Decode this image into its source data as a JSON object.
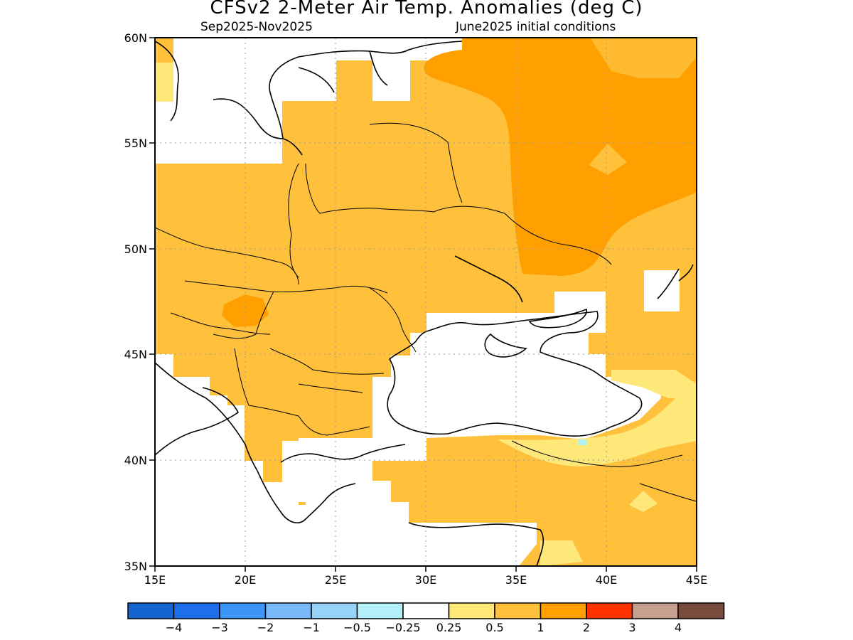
{
  "header": {
    "title": "CFSv2 2-Meter Air Temp. Anomalies (deg C)",
    "period": "Sep2025-Nov2025",
    "init": "June2025 initial conditions"
  },
  "map": {
    "lat_labels": [
      "60N",
      "55N",
      "50N",
      "45N",
      "40N",
      "35N"
    ],
    "lon_labels": [
      "15E",
      "20E",
      "25E",
      "30E",
      "35E",
      "40E",
      "45E"
    ],
    "extent": {
      "lon": [
        15,
        45
      ],
      "lat": [
        35,
        60
      ]
    },
    "grid": "dotted",
    "colors": {
      "c025": "#ffe87a",
      "c05": "#ffc03c",
      "c1": "#ffa000",
      "neutral": "#ffffff",
      "cool": "#b0f0f8",
      "coast": "#000000"
    }
  },
  "legend": {
    "swatches": [
      "#1464d2",
      "#1e6eeb",
      "#3c96f5",
      "#78b9fa",
      "#96d2fa",
      "#b4f0fa",
      "#ffffff",
      "#ffe878",
      "#ffc03c",
      "#ffa000",
      "#ff3200",
      "#c8a090",
      "#784b3c"
    ],
    "labels": [
      "−4",
      "−3",
      "−2",
      "−1",
      "−0.5",
      "−0.25",
      "0.25",
      "0.5",
      "1",
      "2",
      "3",
      "4"
    ]
  }
}
